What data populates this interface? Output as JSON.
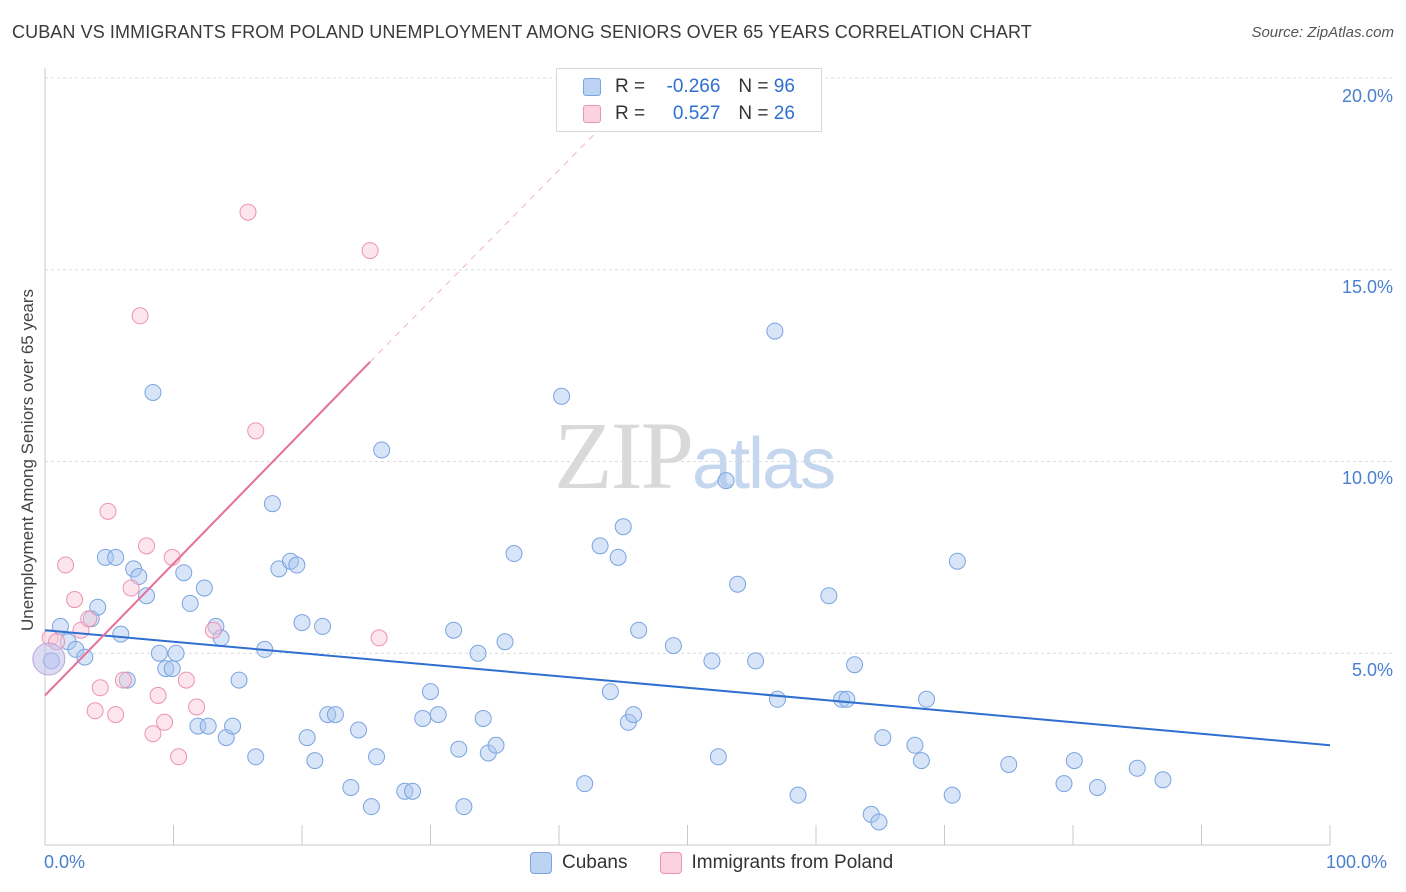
{
  "title": "CUBAN VS IMMIGRANTS FROM POLAND UNEMPLOYMENT AMONG SENIORS OVER 65 YEARS CORRELATION CHART",
  "source": "Source: ZipAtlas.com",
  "watermark": {
    "zip": "ZIP",
    "atlas": "atlas"
  },
  "legend": {
    "rows": [
      {
        "r_label": "R =",
        "r_value": "-0.266",
        "n_label": "N =",
        "n_value": "96",
        "color": "#a9c6f0",
        "border": "#7aa4e0"
      },
      {
        "r_label": "R =",
        "r_value": "0.527",
        "n_label": "N =",
        "n_value": "26",
        "color": "#f9c6d6",
        "border": "#ec93b0"
      }
    ]
  },
  "bottom_legend": [
    "Cubans",
    "Immigrants from Poland"
  ],
  "chart_data": {
    "type": "scatter",
    "title": "CUBAN VS IMMIGRANTS FROM POLAND UNEMPLOYMENT AMONG SENIORS OVER 65 YEARS CORRELATION CHART",
    "xlabel": "",
    "ylabel": "Unemployment Among Seniors over 65 years",
    "xlim": [
      0,
      100
    ],
    "ylim": [
      0,
      20
    ],
    "x_tick_labels": [
      "0.0%",
      "100.0%"
    ],
    "y_tick_labels": [
      "5.0%",
      "10.0%",
      "15.0%",
      "20.0%"
    ],
    "y_ticks": [
      5,
      10,
      15,
      20
    ],
    "grid": "horizontal dashed",
    "legend_position": "top-center",
    "colors": {
      "cubans": "#5b8fe0",
      "poland": "#ec8aa9",
      "cubans_line": "#2f6fcf",
      "poland_line": "#e46f98"
    },
    "series": [
      {
        "name": "Cubans",
        "trend": {
          "x": [
            0,
            100
          ],
          "y": [
            5.6,
            2.6
          ]
        },
        "points": [
          [
            0.5,
            4.8
          ],
          [
            1.2,
            5.7
          ],
          [
            1.8,
            5.3
          ],
          [
            2.4,
            5.1
          ],
          [
            3.1,
            4.9
          ],
          [
            3.6,
            5.9
          ],
          [
            4.1,
            6.2
          ],
          [
            4.7,
            7.5
          ],
          [
            5.5,
            7.5
          ],
          [
            5.9,
            5.5
          ],
          [
            6.4,
            4.3
          ],
          [
            6.9,
            7.2
          ],
          [
            7.3,
            7.0
          ],
          [
            7.9,
            6.5
          ],
          [
            8.4,
            11.8
          ],
          [
            8.9,
            5.0
          ],
          [
            9.4,
            4.6
          ],
          [
            9.9,
            4.6
          ],
          [
            10.2,
            5.0
          ],
          [
            10.8,
            7.1
          ],
          [
            11.3,
            6.3
          ],
          [
            11.9,
            3.1
          ],
          [
            12.4,
            6.7
          ],
          [
            12.7,
            3.1
          ],
          [
            13.3,
            5.7
          ],
          [
            13.7,
            5.4
          ],
          [
            14.1,
            2.8
          ],
          [
            14.6,
            3.1
          ],
          [
            15.1,
            4.3
          ],
          [
            16.4,
            2.3
          ],
          [
            17.1,
            5.1
          ],
          [
            17.7,
            8.9
          ],
          [
            18.2,
            7.2
          ],
          [
            19.1,
            7.4
          ],
          [
            19.6,
            7.3
          ],
          [
            20.0,
            5.8
          ],
          [
            20.4,
            2.8
          ],
          [
            21.0,
            2.2
          ],
          [
            21.6,
            5.7
          ],
          [
            22.0,
            3.4
          ],
          [
            22.6,
            3.4
          ],
          [
            23.8,
            1.5
          ],
          [
            24.4,
            3.0
          ],
          [
            25.4,
            1.0
          ],
          [
            25.8,
            2.3
          ],
          [
            26.2,
            10.3
          ],
          [
            28.0,
            1.4
          ],
          [
            28.6,
            1.4
          ],
          [
            29.4,
            3.3
          ],
          [
            30.0,
            4.0
          ],
          [
            30.6,
            3.4
          ],
          [
            31.8,
            5.6
          ],
          [
            32.2,
            2.5
          ],
          [
            32.6,
            1.0
          ],
          [
            33.7,
            5.0
          ],
          [
            34.1,
            3.3
          ],
          [
            34.5,
            2.4
          ],
          [
            35.1,
            2.6
          ],
          [
            35.8,
            5.3
          ],
          [
            36.5,
            7.6
          ],
          [
            40.2,
            11.7
          ],
          [
            42.0,
            1.6
          ],
          [
            43.2,
            7.8
          ],
          [
            44.0,
            4.0
          ],
          [
            44.6,
            7.5
          ],
          [
            45.0,
            8.3
          ],
          [
            45.4,
            3.2
          ],
          [
            45.8,
            3.4
          ],
          [
            46.2,
            5.6
          ],
          [
            48.9,
            5.2
          ],
          [
            51.9,
            4.8
          ],
          [
            52.4,
            2.3
          ],
          [
            53.0,
            9.5
          ],
          [
            53.9,
            6.8
          ],
          [
            55.3,
            4.8
          ],
          [
            56.8,
            13.4
          ],
          [
            57.0,
            3.8
          ],
          [
            58.6,
            1.3
          ],
          [
            61.0,
            6.5
          ],
          [
            62.0,
            3.8
          ],
          [
            62.4,
            3.8
          ],
          [
            63.0,
            4.7
          ],
          [
            64.3,
            0.8
          ],
          [
            64.9,
            0.6
          ],
          [
            65.2,
            2.8
          ],
          [
            67.7,
            2.6
          ],
          [
            68.2,
            2.2
          ],
          [
            68.6,
            3.8
          ],
          [
            70.6,
            1.3
          ],
          [
            71.0,
            7.4
          ],
          [
            75.0,
            2.1
          ],
          [
            79.3,
            1.6
          ],
          [
            80.1,
            2.2
          ],
          [
            81.9,
            1.5
          ],
          [
            85.0,
            2.0
          ],
          [
            87.0,
            1.7
          ]
        ]
      },
      {
        "name": "Immigrants from Poland",
        "trend": {
          "x": [
            0,
            25.3
          ],
          "y": [
            3.9,
            12.6
          ],
          "extended_to": [
            45,
            19.3
          ]
        },
        "points": [
          [
            0.4,
            5.4
          ],
          [
            0.9,
            5.3
          ],
          [
            1.6,
            7.3
          ],
          [
            2.3,
            6.4
          ],
          [
            2.8,
            5.6
          ],
          [
            3.4,
            5.9
          ],
          [
            3.9,
            3.5
          ],
          [
            4.3,
            4.1
          ],
          [
            4.9,
            8.7
          ],
          [
            5.5,
            3.4
          ],
          [
            6.1,
            4.3
          ],
          [
            6.7,
            6.7
          ],
          [
            7.4,
            13.8
          ],
          [
            7.9,
            7.8
          ],
          [
            8.4,
            2.9
          ],
          [
            8.8,
            3.9
          ],
          [
            9.3,
            3.2
          ],
          [
            9.9,
            7.5
          ],
          [
            10.4,
            2.3
          ],
          [
            11.0,
            4.3
          ],
          [
            11.8,
            3.6
          ],
          [
            13.1,
            5.6
          ],
          [
            15.8,
            16.5
          ],
          [
            16.4,
            10.8
          ],
          [
            25.3,
            15.5
          ],
          [
            26.0,
            5.4
          ]
        ]
      }
    ]
  }
}
